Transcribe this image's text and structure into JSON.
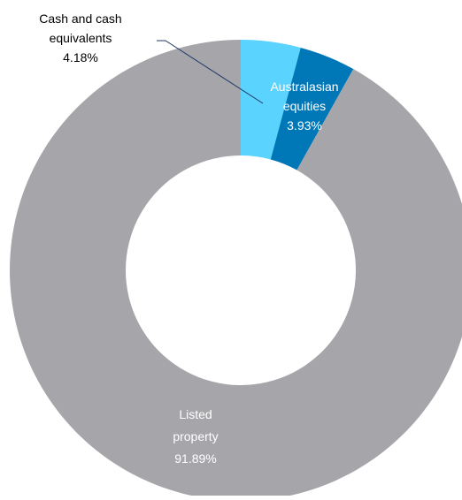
{
  "chart_data": {
    "type": "pie",
    "variant": "donut",
    "slices": [
      {
        "label_lines": [
          "Cash and cash",
          "equivalents"
        ],
        "value": 4.18,
        "value_label": "4.18%",
        "color": "#5bd3ff",
        "label_color": "#000000",
        "label_position": "outside",
        "leader_line": true
      },
      {
        "label_lines": [
          "Australasian",
          "equities"
        ],
        "value": 3.93,
        "value_label": "3.93%",
        "color": "#0078b8",
        "label_color": "#ffffff",
        "label_position": "inside"
      },
      {
        "label_lines": [
          "Listed",
          "property"
        ],
        "value": 91.89,
        "value_label": "91.89%",
        "color": "#a6a6aa",
        "label_color": "#ffffff",
        "label_position": "inside"
      }
    ],
    "start_angle_deg": 0,
    "direction": "clockwise",
    "leader_line_color": "#1f3a68"
  }
}
